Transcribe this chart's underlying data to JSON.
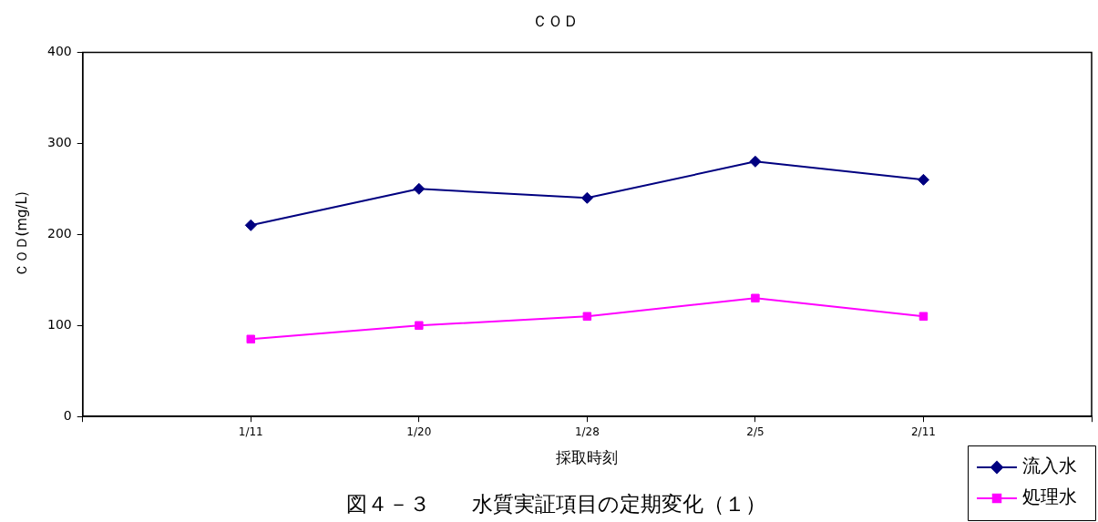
{
  "chart_data": {
    "type": "line",
    "title": "ＣＯＤ",
    "xlabel": "採取時刻",
    "ylabel": "ＣＯＤ(mg/L)",
    "categories": [
      null,
      "1/11",
      "1/20",
      "1/28",
      "2/5",
      "2/11",
      null
    ],
    "series": [
      {
        "name": "流入水",
        "color": "#000080",
        "marker": "diamond",
        "values": [
          null,
          210,
          250,
          240,
          280,
          260,
          null
        ]
      },
      {
        "name": "処理水",
        "color": "#ff00ff",
        "marker": "square",
        "values": [
          null,
          85,
          100,
          110,
          130,
          110,
          null
        ]
      }
    ],
    "ylim": [
      0,
      400
    ],
    "yticks": [
      0,
      100,
      200,
      300,
      400
    ],
    "grid": false,
    "legend": "bottom right",
    "annotations": [
      "図４－３　　水質実証項目の定期変化（１）"
    ]
  }
}
